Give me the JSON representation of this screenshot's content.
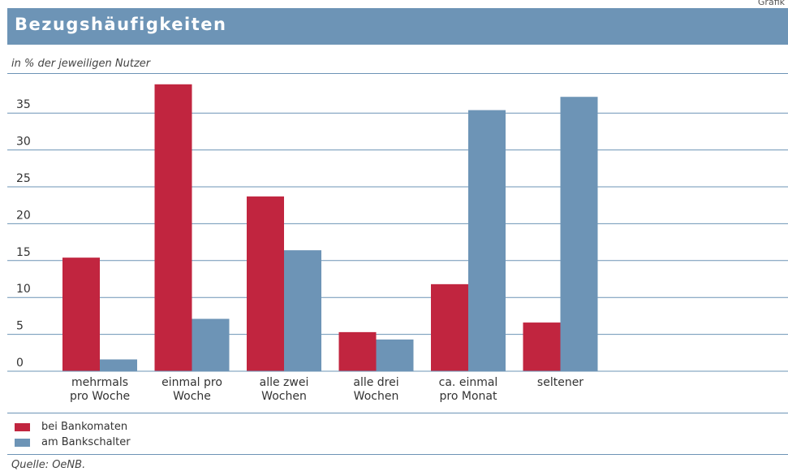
{
  "corner_label": "Grafik",
  "chart_data": {
    "type": "bar",
    "title": "Bezugshäufigkeiten",
    "ylabel": "in % der jeweiligen Nutzer",
    "ylim": [
      0,
      40
    ],
    "yticks": [
      0,
      5,
      10,
      15,
      20,
      25,
      30,
      35
    ],
    "grid": true,
    "categories": [
      [
        "mehrmals",
        "pro Woche"
      ],
      [
        "einmal pro",
        "Woche"
      ],
      [
        "alle zwei",
        "Wochen"
      ],
      [
        "alle drei",
        "Wochen"
      ],
      [
        "ca. einmal",
        "pro Monat"
      ],
      [
        "seltener"
      ]
    ],
    "series": [
      {
        "name": "bei Bankomaten",
        "color": "#c1253f",
        "values": [
          15.4,
          38.9,
          23.7,
          5.3,
          11.8,
          6.6
        ]
      },
      {
        "name": "am Bankschalter",
        "color": "#6d94b6",
        "values": [
          1.6,
          7.1,
          16.4,
          4.3,
          35.4,
          37.2
        ]
      }
    ],
    "legend_position": "bottom-left"
  },
  "source": "Quelle: OeNB."
}
